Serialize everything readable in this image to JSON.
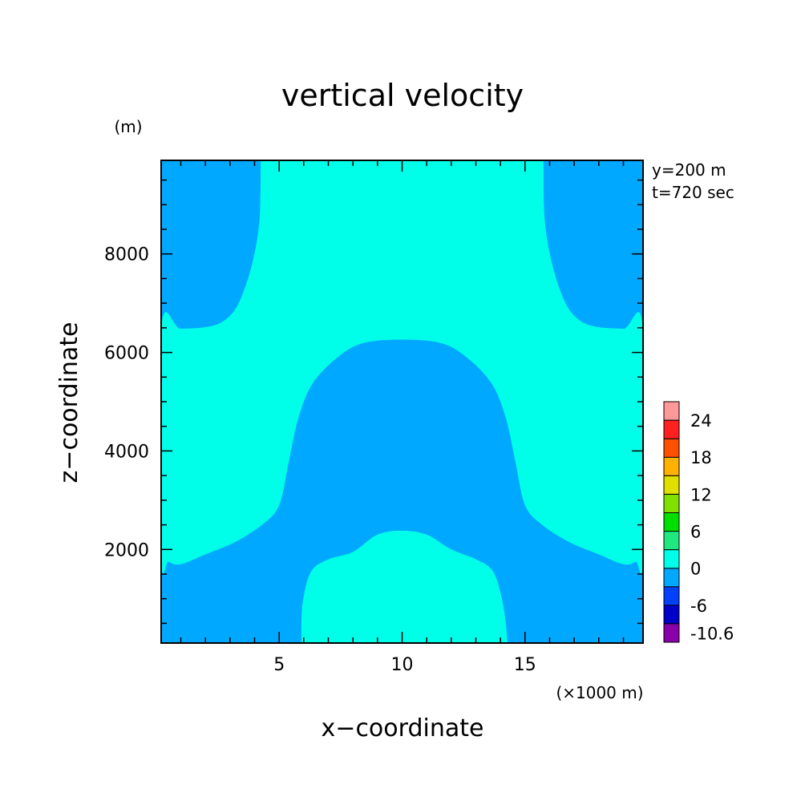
{
  "chart_data": {
    "type": "heatmap",
    "title": "vertical velocity",
    "xlabel": "x−coordinate",
    "ylabel": "z−coordinate",
    "x_unit": "(×1000 m)",
    "y_unit": "(m)",
    "xlim": [
      0.2,
      19.8
    ],
    "ylim": [
      100,
      9900
    ],
    "xticks": [
      5,
      10,
      15
    ],
    "xtick_labels": [
      "5",
      "10",
      "15"
    ],
    "yticks": [
      2000,
      4000,
      6000,
      8000
    ],
    "ytick_labels": [
      "2000",
      "4000",
      "6000",
      "8000"
    ],
    "annotations": [
      "y=200 m",
      "t=720 sec"
    ],
    "background_level_color": "#00a8ff",
    "regions": [
      {
        "level": "0 to 6",
        "color": "#00ffe8",
        "boundary": [
          [
            4.25,
            9900
          ],
          [
            4.2,
            8700
          ],
          [
            3.9,
            7800
          ],
          [
            3.4,
            7050
          ],
          [
            2.9,
            6700
          ],
          [
            2.2,
            6530
          ],
          [
            1.0,
            6480
          ],
          [
            0.2,
            6480
          ],
          [
            0.2,
            1880
          ],
          [
            0.5,
            1750
          ],
          [
            1.0,
            1700
          ],
          [
            2.0,
            1900
          ],
          [
            3.2,
            2150
          ],
          [
            4.3,
            2500
          ],
          [
            5.0,
            2900
          ],
          [
            5.4,
            3800
          ],
          [
            5.8,
            4700
          ],
          [
            6.4,
            5400
          ],
          [
            7.5,
            5950
          ],
          [
            8.5,
            6200
          ],
          [
            10.0,
            6260
          ],
          [
            11.5,
            6200
          ],
          [
            12.5,
            5950
          ],
          [
            13.6,
            5400
          ],
          [
            14.2,
            4700
          ],
          [
            14.6,
            3800
          ],
          [
            15.0,
            2900
          ],
          [
            15.7,
            2500
          ],
          [
            16.8,
            2150
          ],
          [
            18.0,
            1900
          ],
          [
            19.0,
            1700
          ],
          [
            19.5,
            1750
          ],
          [
            19.8,
            1880
          ],
          [
            19.8,
            6480
          ],
          [
            19.0,
            6480
          ],
          [
            17.8,
            6530
          ],
          [
            17.1,
            6700
          ],
          [
            16.6,
            7050
          ],
          [
            16.1,
            7800
          ],
          [
            15.8,
            8700
          ],
          [
            15.75,
            9900
          ]
        ]
      },
      {
        "level": "0 to 6",
        "color": "#00ffe8",
        "boundary": [
          [
            5.9,
            100
          ],
          [
            5.95,
            900
          ],
          [
            6.3,
            1550
          ],
          [
            7.0,
            1800
          ],
          [
            8.0,
            1950
          ],
          [
            9.0,
            2300
          ],
          [
            10.0,
            2380
          ],
          [
            11.0,
            2300
          ],
          [
            12.0,
            2000
          ],
          [
            13.0,
            1800
          ],
          [
            13.7,
            1550
          ],
          [
            14.1,
            900
          ],
          [
            14.3,
            100
          ]
        ]
      }
    ],
    "colorbar": {
      "levels": [
        "-10.6",
        "-6",
        "0",
        "6",
        "12",
        "18",
        "24"
      ],
      "colors": [
        "#8800aa",
        "#0000c8",
        "#0040ff",
        "#00a8ff",
        "#00ffe8",
        "#20e880",
        "#00e000",
        "#80e000",
        "#e0e000",
        "#ffb000",
        "#ff5000",
        "#ff2020",
        "#ff9898"
      ],
      "tick_after_segment": [
        0,
        2,
        4,
        6,
        8,
        10,
        12
      ]
    }
  }
}
